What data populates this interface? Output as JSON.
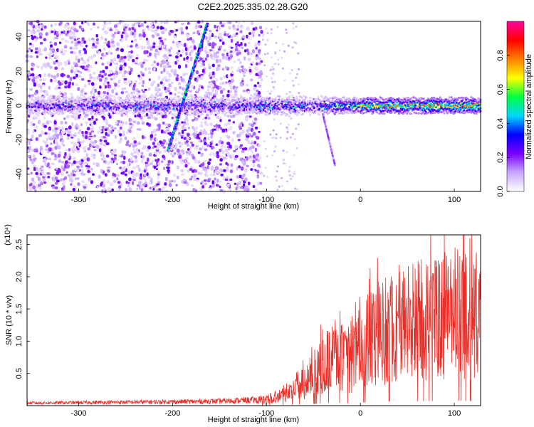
{
  "title": "C2E2.2025.335.02.28.G20",
  "chart_data": [
    {
      "type": "heatmap",
      "xlabel": "Height of straight line (km)",
      "ylabel": "Frequency (Hz)",
      "xlim": [
        -355,
        128
      ],
      "ylim": [
        -50,
        49
      ],
      "x_ticks": [
        -300,
        -200,
        -100,
        0,
        100
      ],
      "x_tick_labels": [
        "-300",
        "-200",
        "-100",
        "0",
        "100"
      ],
      "y_ticks": [
        -40,
        -20,
        0,
        20,
        40
      ],
      "y_tick_labels": [
        "-40",
        "-20",
        "0",
        "20",
        "40"
      ],
      "colorbar": {
        "label": "Normalized spectral amplitude",
        "range": [
          0.0,
          1.0
        ],
        "ticks": [
          0.0,
          0.2,
          0.4,
          0.6,
          0.8
        ],
        "tick_labels": [
          "0.0",
          "0.2",
          "0.4",
          "0.6",
          "0.8"
        ],
        "colors": [
          "#ffffff",
          "#c8a8ff",
          "#7a00ff",
          "#0000ff",
          "#00d8ff",
          "#00ff40",
          "#ffff00",
          "#ff8000",
          "#ff0000",
          "#ff00a0"
        ]
      },
      "features": [
        {
          "name": "carrier",
          "x_range": [
            -355,
            128
          ],
          "frequency": 0
        },
        {
          "name": "chirp",
          "x_range": [
            -205,
            -163
          ],
          "frequency_range": [
            -26,
            48
          ]
        },
        {
          "name": "tail",
          "x_range": [
            -40,
            -27
          ],
          "frequency_range": [
            -5,
            -35
          ]
        },
        {
          "name": "noise_region",
          "x_range": [
            -355,
            -105
          ]
        }
      ]
    },
    {
      "type": "line",
      "xlabel": "Height of straight line (km)",
      "ylabel": "SNR (10 * v/v)",
      "y_multiplier": "(x10⁴)",
      "xlim": [
        -355,
        128
      ],
      "ylim": [
        0,
        2.65
      ],
      "x_ticks": [
        -300,
        -200,
        -100,
        0,
        100
      ],
      "x_tick_labels": [
        "-300",
        "-200",
        "-100",
        "0",
        "100"
      ],
      "y_ticks": [
        0.5,
        1.0,
        1.5,
        2.0,
        2.5
      ],
      "y_tick_labels": [
        "0.5",
        "1.0",
        "1.5",
        "2.0",
        "2.5"
      ],
      "color": "#e8302a",
      "envelope": [
        {
          "x": -355,
          "y": 0.04
        },
        {
          "x": -200,
          "y": 0.06
        },
        {
          "x": -150,
          "y": 0.07
        },
        {
          "x": -110,
          "y": 0.09
        },
        {
          "x": -90,
          "y": 0.15
        },
        {
          "x": -70,
          "y": 0.25
        },
        {
          "x": -55,
          "y": 0.45
        },
        {
          "x": -40,
          "y": 0.7
        },
        {
          "x": -25,
          "y": 0.85
        },
        {
          "x": -12,
          "y": 0.7
        },
        {
          "x": 0,
          "y": 1.0
        },
        {
          "x": 20,
          "y": 1.2
        },
        {
          "x": 50,
          "y": 1.4
        },
        {
          "x": 80,
          "y": 1.45
        },
        {
          "x": 100,
          "y": 1.55
        },
        {
          "x": 128,
          "y": 1.4
        }
      ]
    }
  ]
}
